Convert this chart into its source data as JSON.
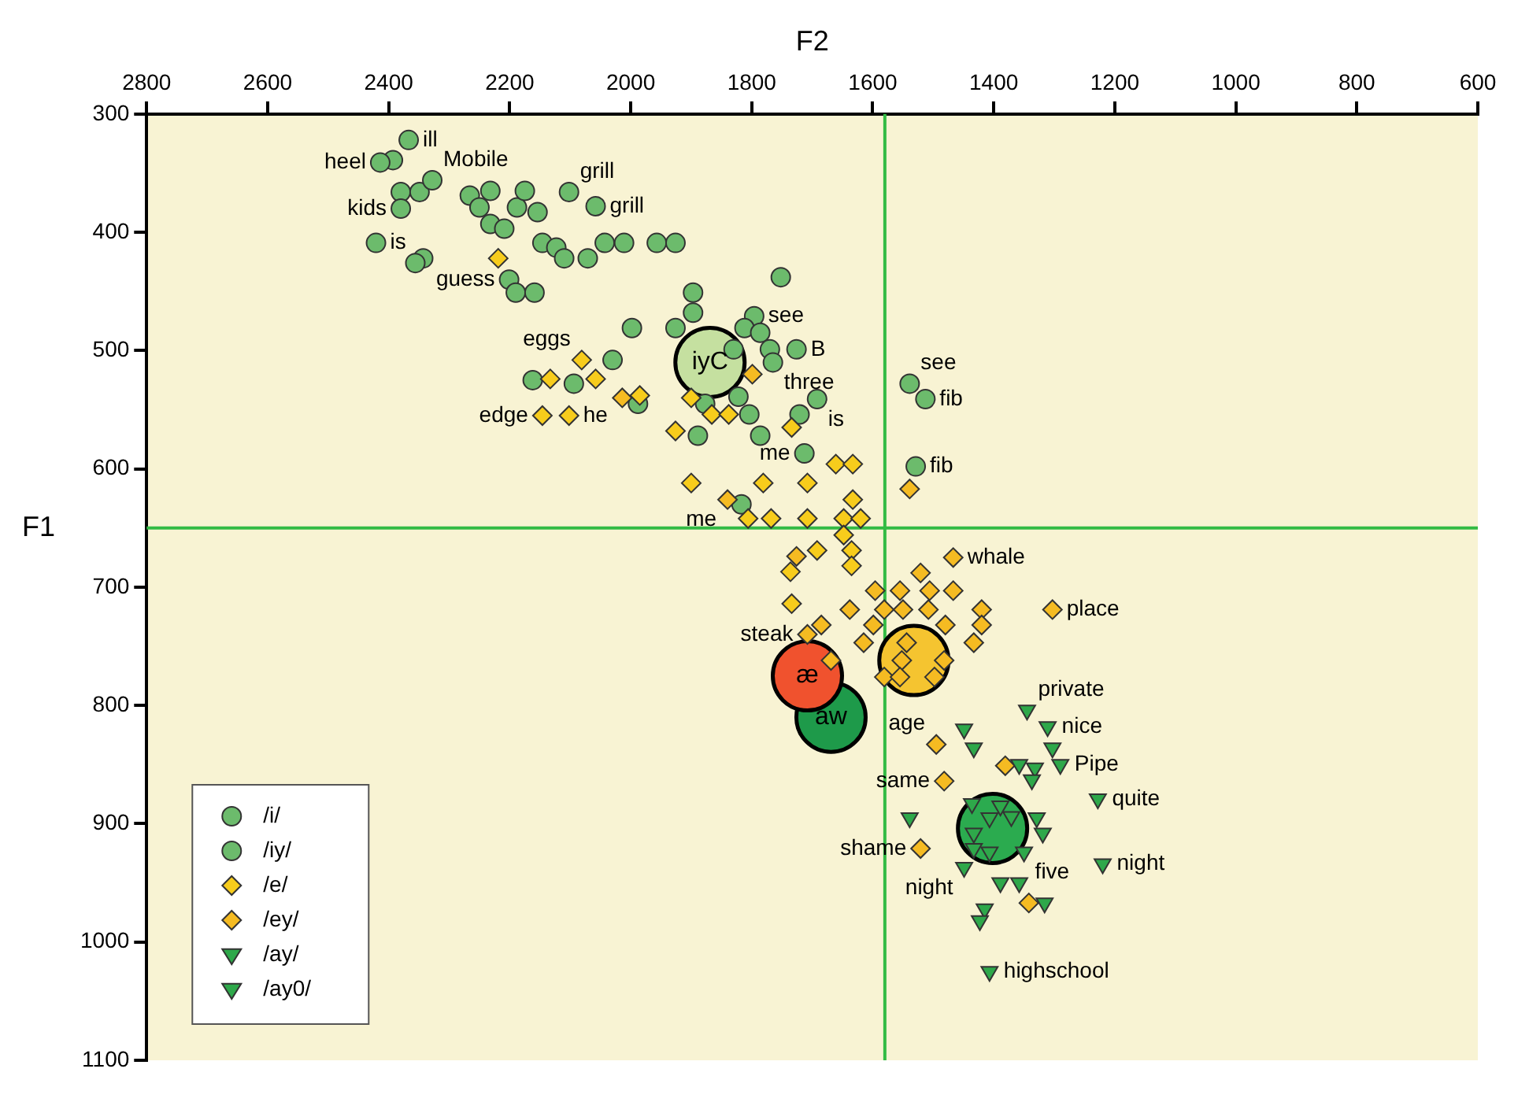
{
  "chart_data": {
    "type": "scatter",
    "xlabel": "F2",
    "ylabel": "F1",
    "xlim": [
      2800,
      600
    ],
    "xticks": [
      2800,
      2600,
      2400,
      2200,
      2000,
      1800,
      1600,
      1400,
      1200,
      1000,
      800,
      600
    ],
    "ylim": [
      1100,
      300
    ],
    "yticks": [
      300,
      400,
      500,
      600,
      700,
      800,
      900,
      1000,
      1100
    ],
    "grid": false,
    "legend": "bottom left",
    "ref_lines": [
      {
        "axis": "x",
        "value": 1580,
        "color": "#33bb44"
      },
      {
        "axis": "y",
        "value": 650,
        "color": "#33bb44"
      }
    ],
    "series": [
      {
        "name": "/i/",
        "color": "#6cbb6c",
        "marker": "circle",
        "x": [
          2367,
          2393,
          2380,
          2349,
          2380,
          2266,
          2232,
          2250,
          2232,
          2209,
          2188,
          2175,
          2102,
          2058,
          2146,
          2123,
          2110,
          2071,
          2043,
          2011,
          1957,
          1926,
          2421,
          2201,
          2190,
          2159,
          1752,
          1897,
          1897,
          1926,
          1998,
          2030,
          2162,
          1988,
          1877,
          1822,
          1804,
          1889,
          1692,
          1721,
          1513,
          1529,
          1817
        ],
        "values": [
          322,
          339,
          366,
          366,
          380,
          369,
          365,
          379,
          393,
          397,
          379,
          365,
          366,
          378,
          409,
          413,
          422,
          422,
          409,
          409,
          409,
          409,
          409,
          440,
          451,
          451,
          438,
          451,
          468,
          481,
          481,
          508,
          525,
          545,
          545,
          539,
          554,
          572,
          541,
          554,
          541,
          598,
          630
        ]
      },
      {
        "name": "/iy/",
        "color": "#6cbb6c",
        "marker": "circle",
        "x": [
          2414,
          2328,
          2154,
          2343,
          2356,
          2094,
          1796,
          1812,
          1786,
          1770,
          1726,
          1765,
          1830,
          1539,
          1786,
          1713
        ],
        "values": [
          341,
          356,
          383,
          422,
          426,
          528,
          471,
          481,
          485,
          499,
          499,
          510,
          499,
          528,
          572,
          587
        ]
      },
      {
        "name": "/e/",
        "color": "#f7cc1c",
        "marker": "diamond",
        "x": [
          2219,
          2081,
          2133,
          2058,
          2146,
          2102,
          1985,
          1926,
          1900,
          1866,
          1838,
          1734,
          1661,
          1633,
          1900,
          1781,
          1708,
          1806,
          1768,
          1708,
          1633,
          1648,
          1620,
          1648,
          1692,
          1736,
          1635,
          1635,
          1734
        ],
        "values": [
          422,
          508,
          524,
          524,
          555,
          555,
          538,
          568,
          540,
          554,
          554,
          565,
          596,
          596,
          612,
          612,
          612,
          642,
          642,
          642,
          626,
          642,
          642,
          656,
          669,
          687,
          669,
          682,
          714
        ]
      },
      {
        "name": "/ey/",
        "color": "#f5bb22",
        "marker": "diamond",
        "x": [
          2014,
          1799,
          1840,
          1539,
          1467,
          1726,
          1596,
          1555,
          1521,
          1506,
          1467,
          1638,
          1581,
          1550,
          1508,
          1420,
          1420,
          1433,
          1480,
          1303,
          1685,
          1708,
          1599,
          1615,
          1669,
          1581,
          1544,
          1552,
          1498,
          1482,
          1555,
          1495,
          1482,
          1521,
          1342,
          1381
        ],
        "values": [
          540,
          520,
          626,
          617,
          675,
          674,
          703,
          703,
          688,
          703,
          703,
          719,
          719,
          719,
          719,
          719,
          732,
          747,
          732,
          719,
          732,
          740,
          732,
          747,
          762,
          776,
          747,
          762,
          776,
          762,
          776,
          833,
          864,
          921,
          967,
          851
        ]
      },
      {
        "name": "/ay/",
        "color": "#2ea84a",
        "marker": "triangle",
        "x": [
          1311,
          1303,
          1290,
          1228,
          1220,
          1358,
          1389
        ],
        "values": [
          818,
          836,
          850,
          879,
          934,
          950,
          950
        ]
      },
      {
        "name": "/ay0/",
        "color": "#2ea84a",
        "marker": "triangle",
        "x": [
          1345,
          1449,
          1433,
          1358,
          1332,
          1337,
          1539,
          1436,
          1407,
          1371,
          1329,
          1433,
          1350,
          1319,
          1407,
          1449,
          1433,
          1415,
          1316,
          1407,
          1423,
          1389
        ],
        "values": [
          804,
          820,
          836,
          850,
          853,
          863,
          895,
          883,
          895,
          894,
          895,
          908,
          924,
          908,
          924,
          937,
          921,
          972,
          967,
          1025,
          982,
          885
        ]
      },
      {
        "type": "bubble",
        "color": "#f5c430",
        "x": [
          1532
        ],
        "values": [
          762
        ],
        "sizes": [
          1
        ]
      },
      {
        "type": "bubble",
        "color": "#2bab4f",
        "x": [
          1402
        ],
        "values": [
          904
        ],
        "sizes": [
          1
        ]
      },
      {
        "type": "bubble",
        "name": "iyC",
        "color": "#c5e0a0",
        "x": [
          1869
        ],
        "values": [
          510
        ],
        "sizes": [
          1
        ]
      },
      {
        "type": "bubble",
        "name": "æ",
        "color": "#f0522e",
        "x": [
          1708
        ],
        "values": [
          775
        ],
        "sizes": [
          1
        ]
      },
      {
        "type": "bubble",
        "name": "aw",
        "color": "#1e9a4a",
        "x": [
          1669
        ],
        "values": [
          810
        ],
        "sizes": [
          1
        ]
      }
    ],
    "annotations": [
      {
        "text": "ill",
        "x": 2367,
        "y": 322
      },
      {
        "text": "heel",
        "x": 2414,
        "y": 341
      },
      {
        "text": "Mobile",
        "x": 2328,
        "y": 356
      },
      {
        "text": "grill",
        "x": 2102,
        "y": 366
      },
      {
        "text": "grill",
        "x": 2058,
        "y": 378
      },
      {
        "text": "kids",
        "x": 2380,
        "y": 380
      },
      {
        "text": "is",
        "x": 2421,
        "y": 409
      },
      {
        "text": "guess",
        "x": 2201,
        "y": 440
      },
      {
        "text": "eggs",
        "x": 2081,
        "y": 508
      },
      {
        "text": "edge",
        "x": 2146,
        "y": 555
      },
      {
        "text": "he",
        "x": 2102,
        "y": 555
      },
      {
        "text": "see",
        "x": 1796,
        "y": 471
      },
      {
        "text": "B",
        "x": 1726,
        "y": 499
      },
      {
        "text": "three",
        "x": 1765,
        "y": 510
      },
      {
        "text": "is",
        "x": 1692,
        "y": 541
      },
      {
        "text": "me",
        "x": 1713,
        "y": 587
      },
      {
        "text": "me",
        "x": 1840,
        "y": 626
      },
      {
        "text": "see",
        "x": 1539,
        "y": 528
      },
      {
        "text": "fib",
        "x": 1513,
        "y": 541
      },
      {
        "text": "fib",
        "x": 1529,
        "y": 598
      },
      {
        "text": "whale",
        "x": 1467,
        "y": 675
      },
      {
        "text": "place",
        "x": 1303,
        "y": 719
      },
      {
        "text": "steak",
        "x": 1708,
        "y": 740
      },
      {
        "text": "private",
        "x": 1345,
        "y": 804
      },
      {
        "text": "nice",
        "x": 1311,
        "y": 818
      },
      {
        "text": "Pipe",
        "x": 1290,
        "y": 850
      },
      {
        "text": "quite",
        "x": 1228,
        "y": 879
      },
      {
        "text": "five",
        "x": 1350,
        "y": 924
      },
      {
        "text": "night",
        "x": 1220,
        "y": 934
      },
      {
        "text": "age",
        "x": 1495,
        "y": 833
      },
      {
        "text": "same",
        "x": 1482,
        "y": 864
      },
      {
        "text": "shame",
        "x": 1521,
        "y": 921
      },
      {
        "text": "night",
        "x": 1449,
        "y": 937
      },
      {
        "text": "highschool",
        "x": 1407,
        "y": 1025
      }
    ]
  }
}
